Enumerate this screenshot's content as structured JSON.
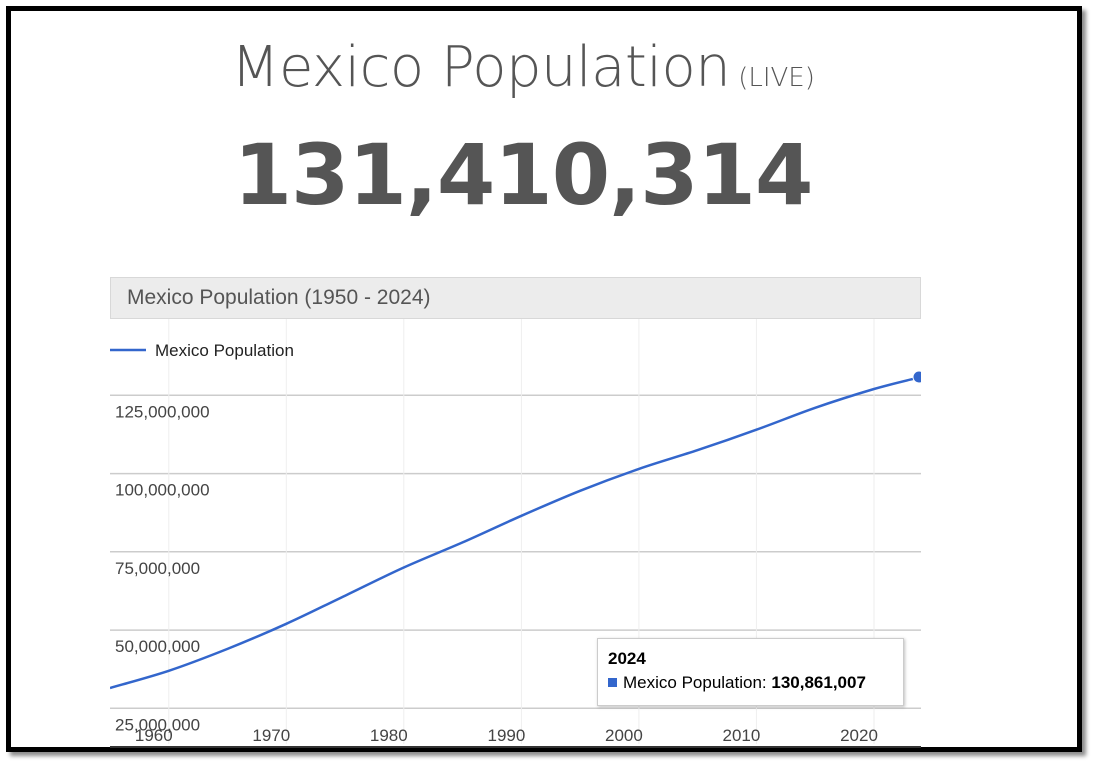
{
  "page": {
    "title": "Mexico Population",
    "title_suffix": "(LIVE)",
    "live_count": "131,410,314"
  },
  "chart_header": "Mexico Population (1950 - 2024)",
  "tooltip": {
    "year": "2024",
    "label": "Mexico Population:",
    "value": "130,861,007"
  },
  "colors": {
    "series": "#3366cc",
    "text": "#555555",
    "grid": "#cccccc"
  },
  "chart_data": {
    "type": "line",
    "title": "Mexico Population (1950 - 2024)",
    "legend": {
      "position": "top-left",
      "entries": [
        "Mexico Population"
      ]
    },
    "grid": true,
    "xlim": [
      1955,
      2024
    ],
    "ylim": [
      20000000,
      135000000
    ],
    "x_ticks": [
      1960,
      1970,
      1980,
      1990,
      2000,
      2010,
      2020
    ],
    "y_ticks": [
      25000000,
      50000000,
      75000000,
      100000000,
      125000000
    ],
    "y_tick_labels": [
      "25,000,000",
      "50,000,000",
      "75,000,000",
      "100,000,000",
      "125,000,000"
    ],
    "series": [
      {
        "name": "Mexico Population",
        "x": [
          1955,
          1960,
          1965,
          1970,
          1975,
          1980,
          1985,
          1990,
          1995,
          2000,
          2005,
          2010,
          2015,
          2020,
          2024
        ],
        "y": [
          31500000,
          37000000,
          44000000,
          52000000,
          61000000,
          70000000,
          78000000,
          86500000,
          94500000,
          101500000,
          107500000,
          114000000,
          121000000,
          127000000,
          130861007
        ]
      }
    ],
    "highlight": {
      "x": 2024,
      "y": 130861007
    }
  }
}
